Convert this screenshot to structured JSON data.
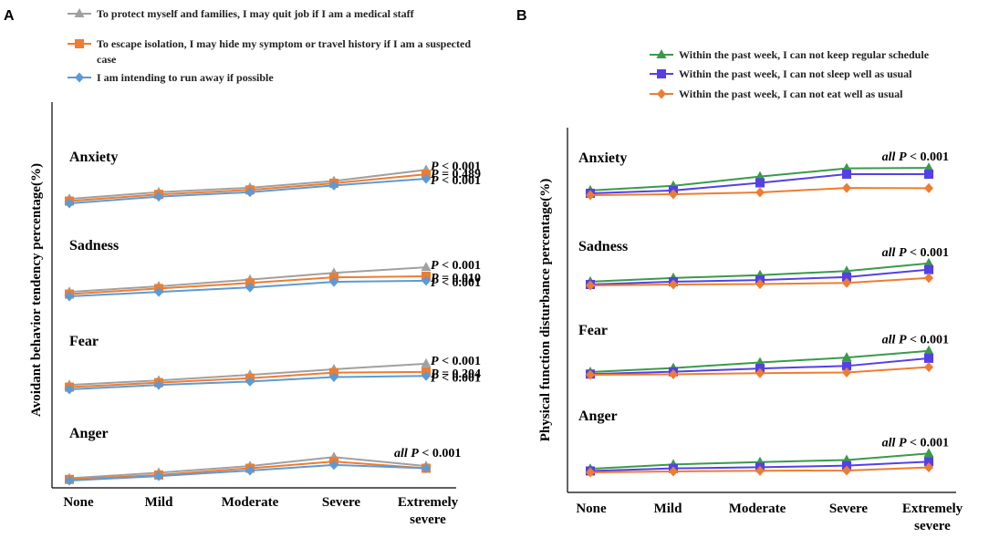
{
  "chart_data": [
    {
      "panel": "A",
      "type": "line",
      "ylabel": "Avoidant behavior tendency percentage(%)",
      "xlabel": "",
      "categories": [
        "None",
        "Mild",
        "Moderate",
        "Severe",
        "Extremely severe"
      ],
      "series_legend": [
        {
          "name": "To protect myself and families, I may quit job if I am a medical staff",
          "color": "#a0a0a0",
          "marker": "triangle"
        },
        {
          "name": "To escape isolation, I may hide my symptom or travel history if I am a suspected case",
          "color": "#ed7d31",
          "marker": "square"
        },
        {
          "name": "I am intending to run away if possible",
          "color": "#5b9bd5",
          "marker": "diamond"
        }
      ],
      "groups": [
        {
          "name": "Anxiety",
          "series": [
            {
              "values": [
                27,
                30,
                32,
                35,
                40
              ],
              "pvalue": {
                "prefix": "",
                "label": "P",
                "op": " < ",
                "value": "0.001"
              }
            },
            {
              "values": [
                26,
                29,
                31,
                34,
                38
              ],
              "pvalue": {
                "prefix": "",
                "label": "P",
                "op": " = ",
                "value": "0.489"
              }
            },
            {
              "values": [
                25,
                28,
                30,
                33,
                36
              ],
              "pvalue": {
                "prefix": "",
                "label": "P",
                "op": " < ",
                "value": "0.001"
              }
            }
          ]
        },
        {
          "name": "Sadness",
          "series": [
            {
              "values": [
                18,
                20.5,
                23.5,
                26.5,
                29
              ],
              "pvalue": {
                "prefix": "",
                "label": "P",
                "op": " < ",
                "value": "0.001"
              }
            },
            {
              "values": [
                17,
                19.5,
                22,
                24.5,
                25
              ],
              "pvalue": {
                "prefix": "",
                "label": "P",
                "op": " = ",
                "value": "0.010"
              }
            },
            {
              "values": [
                16,
                18,
                20,
                22.5,
                23
              ],
              "pvalue": {
                "prefix": "",
                "label": "P",
                "op": " < ",
                "value": "0.001"
              }
            }
          ]
        },
        {
          "name": "Fear",
          "series": [
            {
              "values": [
                12,
                14,
                16.5,
                19,
                21.5
              ],
              "pvalue": {
                "prefix": "",
                "label": "P",
                "op": " < ",
                "value": "0.001"
              }
            },
            {
              "values": [
                11,
                13,
                15,
                17.5,
                17.8
              ],
              "pvalue": {
                "prefix": "",
                "label": "P",
                "op": " = ",
                "value": "0.204"
              }
            },
            {
              "values": [
                10,
                12,
                13.5,
                15.5,
                16
              ],
              "pvalue": {
                "prefix": "",
                "label": "P",
                "op": " < ",
                "value": "0.001"
              }
            }
          ]
        },
        {
          "name": "Anger",
          "series": [
            {
              "values": [
                1.5,
                4,
                7,
                11,
                7
              ],
              "pvalue": {
                "prefix": "all ",
                "label": "P",
                "op": " < ",
                "value": "0.001"
              }
            },
            {
              "values": [
                1,
                3,
                6,
                9,
                6
              ]
            },
            {
              "values": [
                0.5,
                2.5,
                5,
                7.5,
                6
              ]
            }
          ]
        }
      ]
    },
    {
      "panel": "B",
      "type": "line",
      "ylabel": "Physical function disturbance percentage(%)",
      "xlabel": "",
      "categories": [
        "None",
        "Mild",
        "Moderate",
        "Severe",
        "Extremely severe"
      ],
      "series_legend": [
        {
          "name": "Within the past week, I can not keep regular schedule",
          "color": "#3a9a4b",
          "marker": "triangle"
        },
        {
          "name": "Within the past week, I can not sleep well as usual",
          "color": "#5440e6",
          "marker": "square"
        },
        {
          "name": "Within the past week, I can not eat well as usual",
          "color": "#ed7d31",
          "marker": "diamond"
        }
      ],
      "groups": [
        {
          "name": "Anxiety",
          "series": [
            {
              "values": [
                31,
                33,
                37,
                40.5,
                40.7
              ],
              "pvalue": {
                "prefix": "all ",
                "label": "P",
                "op": " < ",
                "value": "0.001"
              }
            },
            {
              "values": [
                29.8,
                31,
                34.3,
                38,
                38
              ]
            },
            {
              "values": [
                29,
                29.4,
                30.2,
                32.1,
                32
              ]
            }
          ]
        },
        {
          "name": "Sadness",
          "series": [
            {
              "values": [
                21.2,
                22.8,
                24,
                25.8,
                29.1
              ],
              "pvalue": {
                "prefix": "all ",
                "label": "P",
                "op": " < ",
                "value": "0.001"
              }
            },
            {
              "values": [
                20,
                21.2,
                21.9,
                23.2,
                26.4
              ]
            },
            {
              "values": [
                19.6,
                20,
                20.2,
                20.7,
                22.8
              ]
            }
          ]
        },
        {
          "name": "Fear",
          "series": [
            {
              "values": [
                11.3,
                13,
                15.4,
                17.5,
                20.4
              ],
              "pvalue": {
                "prefix": "all ",
                "label": "P",
                "op": " < ",
                "value": "0.001"
              }
            },
            {
              "values": [
                10.4,
                11.4,
                12.8,
                13.9,
                17.2
              ]
            },
            {
              "values": [
                10.1,
                10.3,
                10.8,
                11.1,
                13.4
              ]
            }
          ]
        },
        {
          "name": "Anger",
          "series": [
            {
              "values": [
                1.7,
                3.6,
                4.6,
                5.5,
                8.3
              ],
              "pvalue": {
                "prefix": "all ",
                "label": "P",
                "op": " < ",
                "value": "0.001"
              }
            },
            {
              "values": [
                0.8,
                1.9,
                2.4,
                3.1,
                4.8
              ]
            },
            {
              "values": [
                0.2,
                0.6,
                0.9,
                1.0,
                2.3
              ]
            }
          ]
        }
      ]
    }
  ]
}
